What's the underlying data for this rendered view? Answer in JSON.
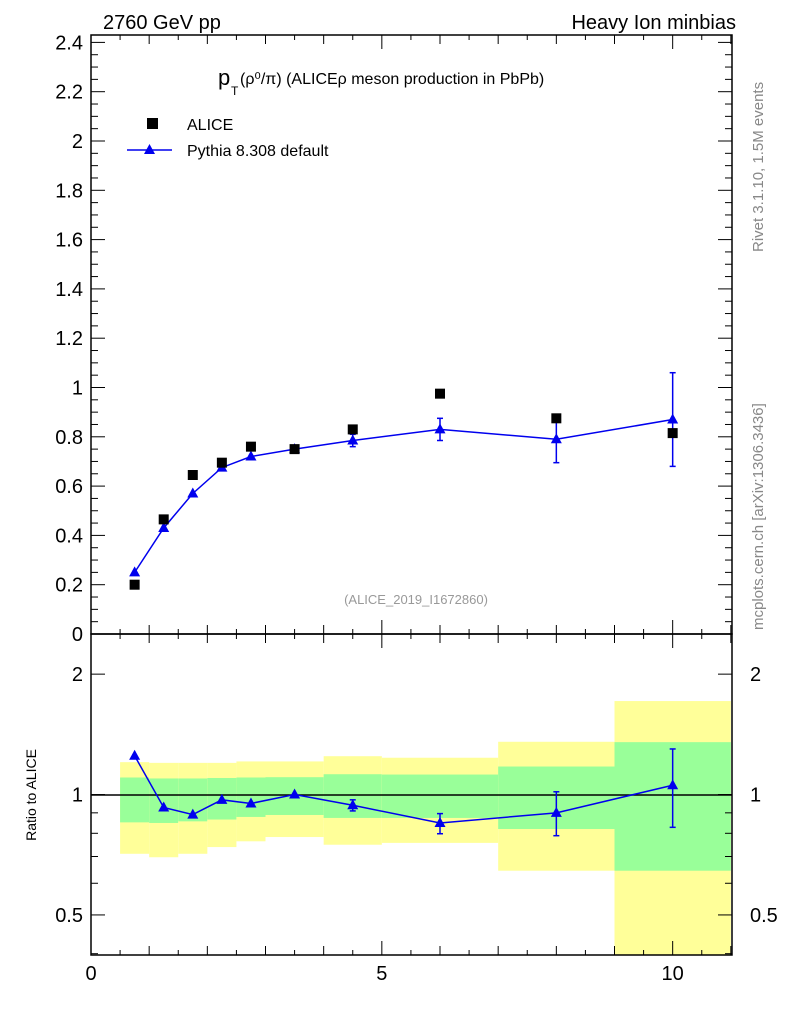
{
  "header": {
    "left": "2760 GeV pp",
    "right": "Heavy Ion minbias"
  },
  "side_labels": {
    "rivet": "Rivet 3.1.10,  1.5M events",
    "mcplots": "mcplots.cern.ch [arXiv:1306.3436]"
  },
  "watermark": "(ALICE_2019_I1672860)",
  "colors": {
    "data": "#000000",
    "mc": "#0000ee",
    "band_inner": "#99ff99",
    "band_outer": "#ffff99"
  },
  "chart_data": [
    {
      "type": "scatter",
      "title": {
        "main": "p",
        "sub": "T",
        "rest": "(ρ⁰/π) (ALICEρ meson production in PbPb)"
      },
      "xlabel": "",
      "ylabel": "",
      "xlim": [
        0,
        11.02
      ],
      "ylim": [
        0,
        2.43
      ],
      "yticks": [
        "0",
        "0.2",
        "0.4",
        "0.6",
        "0.8",
        "1",
        "1.2",
        "1.4",
        "1.6",
        "1.8",
        "2",
        "2.2",
        "2.4"
      ],
      "legend": {
        "placement": "top-left",
        "entries": [
          "ALICE",
          "Pythia 8.308 default"
        ]
      },
      "series": [
        {
          "name": "ALICE",
          "marker": "square",
          "x": [
            0.75,
            1.25,
            1.75,
            2.25,
            2.75,
            3.5,
            4.5,
            6,
            8,
            10
          ],
          "y": [
            0.2,
            0.465,
            0.645,
            0.695,
            0.76,
            0.75,
            0.83,
            0.975,
            0.875,
            0.815
          ]
        },
        {
          "name": "Pythia 8.308 default",
          "marker": "triangle",
          "x": [
            0.75,
            1.25,
            1.75,
            2.25,
            2.75,
            3.5,
            4.5,
            6,
            8,
            10
          ],
          "y": [
            0.25,
            0.43,
            0.57,
            0.675,
            0.72,
            0.75,
            0.785,
            0.83,
            0.79,
            0.87
          ],
          "yerr": [
            0.005,
            0.008,
            0.008,
            0.01,
            0.01,
            0.01,
            0.025,
            0.045,
            0.095,
            0.19
          ]
        }
      ]
    },
    {
      "type": "line",
      "ylabel": "Ratio to ALICE",
      "scale": "log",
      "xlim": [
        0,
        11.02
      ],
      "ylim": [
        0.397,
        2.52
      ],
      "xticks": [
        "0",
        "5",
        "10"
      ],
      "yticks": [
        "0.5",
        "1",
        "2"
      ],
      "bands": {
        "edges": [
          0.5,
          1.0,
          1.5,
          2.0,
          2.5,
          3.0,
          4.0,
          5.0,
          7.0,
          9.0,
          11.0
        ],
        "outer_low": [
          0.711,
          0.697,
          0.711,
          0.739,
          0.764,
          0.783,
          0.749,
          0.757,
          0.645,
          0.3
        ],
        "outer_high": [
          1.205,
          1.2,
          1.2,
          1.2,
          1.21,
          1.21,
          1.247,
          1.236,
          1.355,
          1.713
        ],
        "inner_low": [
          0.852,
          0.849,
          0.857,
          0.866,
          0.879,
          0.889,
          0.874,
          0.874,
          0.82,
          0.645
        ],
        "inner_high": [
          1.103,
          1.097,
          1.097,
          1.1,
          1.103,
          1.105,
          1.124,
          1.122,
          1.175,
          1.352
        ]
      },
      "series": [
        {
          "name": "Pythia 8.308 default / ALICE",
          "x": [
            0.75,
            1.25,
            1.75,
            2.25,
            2.75,
            3.5,
            4.5,
            6,
            8,
            10
          ],
          "y": [
            1.25,
            0.928,
            0.891,
            0.97,
            0.95,
            1.0,
            0.94,
            0.849,
            0.9,
            1.055
          ],
          "ylow": [
            1.245,
            0.923,
            0.886,
            0.965,
            0.945,
            0.995,
            0.91,
            0.798,
            0.789,
            0.828
          ],
          "yhigh": [
            1.255,
            0.933,
            0.896,
            0.975,
            0.955,
            1.005,
            0.97,
            0.896,
            1.016,
            1.3
          ]
        }
      ]
    }
  ]
}
